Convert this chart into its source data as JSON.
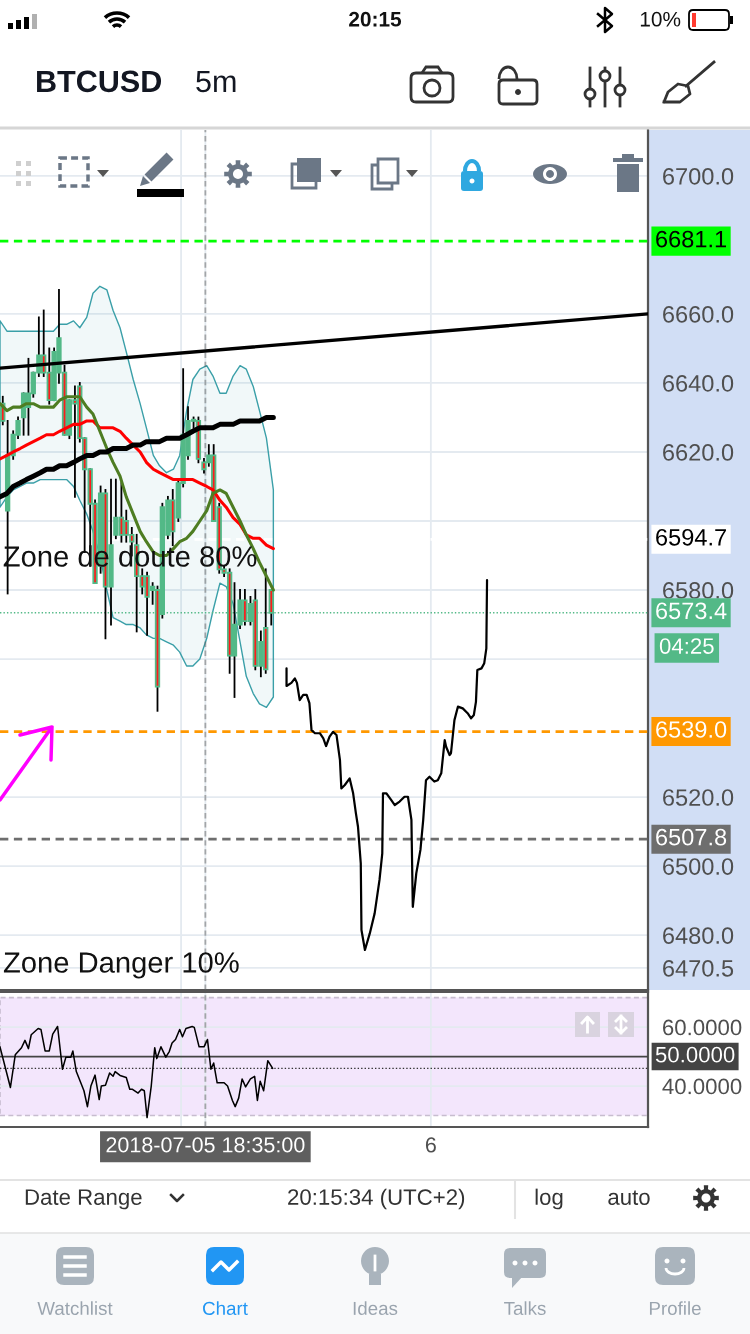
{
  "chart_data": [
    {
      "type": "candlestick",
      "title": "BTCUSD",
      "subtitle": "5m",
      "color": "#53b987",
      "x": [
        "2018-07-05T13:43",
        "2018-07-05T13:50",
        "2018-07-05T13:58",
        "2018-07-05T14:05",
        "2018-07-05T14:13",
        "2018-07-05T14:20",
        "2018-07-05T14:27",
        "2018-07-05T14:35",
        "2018-07-05T14:42",
        "2018-07-05T14:50",
        "2018-07-05T14:57",
        "2018-07-05T15:04",
        "2018-07-05T15:12",
        "2018-07-05T15:19",
        "2018-07-05T15:27",
        "2018-07-05T15:34",
        "2018-07-05T15:41",
        "2018-07-05T15:49",
        "2018-07-05T15:56",
        "2018-07-05T16:04",
        "2018-07-05T16:11",
        "2018-07-05T16:19",
        "2018-07-05T16:26",
        "2018-07-05T16:34",
        "2018-07-05T16:41",
        "2018-07-05T16:49",
        "2018-07-05T16:56",
        "2018-07-05T17:04",
        "2018-07-05T17:11",
        "2018-07-05T17:19",
        "2018-07-05T17:26",
        "2018-07-05T17:33",
        "2018-07-05T17:41",
        "2018-07-05T17:48",
        "2018-07-05T17:56",
        "2018-07-05T18:03",
        "2018-07-05T18:10",
        "2018-07-05T18:18",
        "2018-07-05T18:25",
        "2018-07-05T18:33",
        "2018-07-05T18:40",
        "2018-07-05T18:47",
        "2018-07-05T18:55",
        "2018-07-05T19:02",
        "2018-07-05T19:10",
        "2018-07-05T19:17",
        "2018-07-05T19:25",
        "2018-07-05T19:32",
        "2018-07-05T19:40",
        "2018-07-05T19:47",
        "2018-07-05T19:55",
        "2018-07-05T20:02",
        "2018-07-05T20:10"
      ],
      "ohlc": [
        [
          6634,
          6636,
          6628,
          6629
        ],
        [
          6603,
          6629,
          6579,
          6619
        ],
        [
          6619,
          6626,
          6618,
          6625
        ],
        [
          6625,
          6630,
          6624,
          6629
        ],
        [
          6630,
          6637,
          6625,
          6637
        ],
        [
          6633,
          6647,
          6625,
          6637
        ],
        [
          6637,
          6643,
          6636,
          6643
        ],
        [
          6643,
          6659,
          6642,
          6648
        ],
        [
          6648,
          6661,
          6642,
          6643
        ],
        [
          6643,
          6650,
          6634,
          6635
        ],
        [
          6635,
          6650,
          6635,
          6649
        ],
        [
          6643,
          6667,
          6640,
          6653
        ],
        [
          6643,
          6645,
          6625,
          6625
        ],
        [
          6625,
          6635,
          6624,
          6635
        ],
        [
          6635,
          6639,
          6607,
          6634
        ],
        [
          6639,
          6640,
          6623,
          6624
        ],
        [
          6624,
          6624,
          6591,
          6615
        ],
        [
          6615,
          6615,
          6587,
          6605
        ],
        [
          6605,
          6606,
          6582,
          6582
        ],
        [
          6587,
          6610,
          6585,
          6608
        ],
        [
          6608,
          6609,
          6566,
          6581
        ],
        [
          6581,
          6612,
          6570,
          6593
        ],
        [
          6596,
          6612,
          6595,
          6601
        ],
        [
          6601,
          6611,
          6594,
          6596
        ],
        [
          6600,
          6603,
          6594,
          6596
        ],
        [
          6596,
          6598,
          6590,
          6594
        ],
        [
          6593,
          6596,
          6568,
          6584
        ],
        [
          6584,
          6586,
          6579,
          6581
        ],
        [
          6584,
          6585,
          6567,
          6578
        ],
        [
          6580,
          6582,
          6576,
          6581
        ],
        [
          6580,
          6581,
          6545,
          6552
        ],
        [
          6573,
          6605,
          6572,
          6604
        ],
        [
          6596,
          6607,
          6595,
          6606
        ],
        [
          6606,
          6609,
          6593,
          6597
        ],
        [
          6601,
          6612,
          6600,
          6611
        ],
        [
          6611,
          6644,
          6610,
          6625
        ],
        [
          6619,
          6633,
          6618,
          6629
        ],
        [
          6629,
          6630,
          6627,
          6629
        ],
        [
          6629,
          6630,
          6617,
          6618
        ],
        [
          6617,
          6618,
          6614,
          6615
        ],
        [
          6617,
          6622,
          6616,
          6619
        ],
        [
          6619,
          6622,
          6600,
          6600
        ],
        [
          6604,
          6605,
          6585,
          6586
        ],
        [
          6586,
          6587,
          6584,
          6585
        ],
        [
          6585,
          6586,
          6556,
          6561
        ],
        [
          6561,
          6582,
          6549,
          6570
        ],
        [
          6570,
          6580,
          6569,
          6577
        ],
        [
          6577,
          6580,
          6570,
          6571
        ],
        [
          6571,
          6578,
          6570,
          6576
        ],
        [
          6577,
          6580,
          6557,
          6558
        ],
        [
          6558,
          6568,
          6555,
          6565
        ],
        [
          6569,
          6586,
          6556,
          6557
        ],
        [
          6580,
          6580,
          6570,
          6573.4
        ]
      ],
      "series": [
        {
          "type": "line",
          "color": "#3a9fa8",
          "x": [
            "2018-07-05T13:39",
            "2018-07-05T13:49",
            "2018-07-05T13:58",
            "2018-07-05T14:08",
            "2018-07-05T14:17",
            "2018-07-05T14:27",
            "2018-07-05T14:37",
            "2018-07-05T14:46",
            "2018-07-05T14:56",
            "2018-07-05T15:05",
            "2018-07-05T15:15",
            "2018-07-05T15:25",
            "2018-07-05T15:34",
            "2018-07-05T15:44",
            "2018-07-05T15:53",
            "2018-07-05T16:03",
            "2018-07-05T16:13",
            "2018-07-05T16:22",
            "2018-07-05T16:32",
            "2018-07-05T16:41",
            "2018-07-05T16:51",
            "2018-07-05T17:01",
            "2018-07-05T17:10",
            "2018-07-05T17:20",
            "2018-07-05T17:29",
            "2018-07-05T17:39",
            "2018-07-05T17:49",
            "2018-07-05T17:58",
            "2018-07-05T18:08",
            "2018-07-05T18:17",
            "2018-07-05T18:27",
            "2018-07-05T18:37",
            "2018-07-05T18:46",
            "2018-07-05T18:56",
            "2018-07-05T19:05",
            "2018-07-05T19:15",
            "2018-07-05T19:25",
            "2018-07-05T19:34",
            "2018-07-05T19:44",
            "2018-07-05T19:53",
            "2018-07-05T20:03",
            "2018-07-05T20:13"
          ],
          "values": [
            null,
            null,
            null,
            null,
            null,
            null,
            null,
            null,
            null,
            null,
            null,
            null,
            null,
            null,
            null,
            null,
            null,
            null,
            null,
            null,
            null,
            null,
            null,
            null,
            null,
            null,
            null,
            null,
            null,
            null,
            null,
            null,
            null,
            null,
            null,
            null,
            null,
            null,
            null,
            null,
            null,
            null
          ],
          "lower": [
            6604,
            6607,
            6609,
            6610,
            6611,
            6611,
            6612,
            6612,
            6612,
            6612,
            6612,
            6610,
            6606,
            6602,
            6597,
            6590,
            6580,
            6572,
            6571,
            6570,
            6570,
            6569,
            6567,
            6566,
            6566,
            6565,
            6564,
            6562,
            6558,
            6558,
            6560,
            6566,
            6574,
            6582,
            6581,
            6576,
            6565,
            6555,
            6550,
            6547,
            6546,
            6549
          ],
          "upper": [
            6658,
            6655,
            6655,
            6655,
            6655,
            6655,
            6655,
            6655,
            6655,
            6657,
            6657,
            6658,
            6656,
            6659,
            6666,
            6668,
            6667,
            6661,
            6656,
            6649,
            6641,
            6634,
            6627,
            6619,
            6616,
            6614,
            6615,
            6619,
            6632,
            6641,
            6644,
            6645,
            6642,
            6637,
            6637,
            6642,
            6645,
            6644,
            6639,
            6632,
            6624,
            6609
          ]
        },
        {
          "type": "line",
          "color": "#ff0000",
          "x": [
            "2018-07-05T13:39",
            "2018-07-05T13:49",
            "2018-07-05T13:58",
            "2018-07-05T14:08",
            "2018-07-05T14:17",
            "2018-07-05T14:27",
            "2018-07-05T14:37",
            "2018-07-05T14:46",
            "2018-07-05T14:56",
            "2018-07-05T15:05",
            "2018-07-05T15:15",
            "2018-07-05T15:25",
            "2018-07-05T15:34",
            "2018-07-05T15:44",
            "2018-07-05T15:53",
            "2018-07-05T16:03",
            "2018-07-05T16:13",
            "2018-07-05T16:22",
            "2018-07-05T16:32",
            "2018-07-05T16:41",
            "2018-07-05T16:51",
            "2018-07-05T17:01",
            "2018-07-05T17:10",
            "2018-07-05T17:20",
            "2018-07-05T17:29",
            "2018-07-05T17:39",
            "2018-07-05T17:49",
            "2018-07-05T17:58",
            "2018-07-05T18:08",
            "2018-07-05T18:17",
            "2018-07-05T18:27",
            "2018-07-05T18:37",
            "2018-07-05T18:46",
            "2018-07-05T18:56",
            "2018-07-05T19:05",
            "2018-07-05T19:15",
            "2018-07-05T19:25",
            "2018-07-05T19:34",
            "2018-07-05T19:44",
            "2018-07-05T19:53",
            "2018-07-05T20:03",
            "2018-07-05T20:13"
          ],
          "values": [
            6618,
            6619,
            6620,
            6621,
            6622,
            6623,
            6624,
            6625,
            6625,
            6626,
            6627,
            6628,
            6628,
            6629,
            6629,
            6627,
            6627,
            6627,
            6626,
            6624,
            6622,
            6620,
            6617,
            6615,
            6614,
            6613,
            6612,
            6612,
            6612,
            6612,
            6611,
            6610,
            6609,
            6606,
            6604,
            6601,
            6599,
            6596,
            6595,
            6595,
            6593,
            6592
          ]
        },
        {
          "type": "line",
          "color": "#4e7d22",
          "x": [
            "2018-07-05T13:39",
            "2018-07-05T13:49",
            "2018-07-05T13:58",
            "2018-07-05T14:08",
            "2018-07-05T14:17",
            "2018-07-05T14:27",
            "2018-07-05T14:37",
            "2018-07-05T14:46",
            "2018-07-05T14:56",
            "2018-07-05T15:05",
            "2018-07-05T15:15",
            "2018-07-05T15:25",
            "2018-07-05T15:34",
            "2018-07-05T15:44",
            "2018-07-05T15:53",
            "2018-07-05T16:03",
            "2018-07-05T16:13",
            "2018-07-05T16:22",
            "2018-07-05T16:32",
            "2018-07-05T16:41",
            "2018-07-05T16:51",
            "2018-07-05T17:01",
            "2018-07-05T17:10",
            "2018-07-05T17:20",
            "2018-07-05T17:29",
            "2018-07-05T17:39",
            "2018-07-05T17:49",
            "2018-07-05T17:58",
            "2018-07-05T18:08",
            "2018-07-05T18:17",
            "2018-07-05T18:27",
            "2018-07-05T18:37",
            "2018-07-05T18:46",
            "2018-07-05T18:56",
            "2018-07-05T19:05",
            "2018-07-05T19:15",
            "2018-07-05T19:25",
            "2018-07-05T19:34",
            "2018-07-05T19:44",
            "2018-07-05T19:53",
            "2018-07-05T20:03",
            "2018-07-05T20:13"
          ],
          "values": [
            6634,
            6632,
            6633,
            6633,
            6634,
            6634,
            6633,
            6633,
            6633,
            6635,
            6636,
            6636,
            6636,
            6633,
            6631,
            6626,
            6621,
            6617,
            6613,
            6607,
            6602,
            6597,
            6594,
            6591,
            6590,
            6590,
            6592,
            6594,
            6595,
            6597,
            6600,
            6603,
            6608,
            6609,
            6608,
            6604,
            6600,
            6596,
            6592,
            6588,
            6584,
            6580
          ]
        },
        {
          "type": "line",
          "color": "#000000",
          "x": [
            "2018-07-05T13:39",
            "2018-07-05T13:49",
            "2018-07-05T13:58",
            "2018-07-05T14:08",
            "2018-07-05T14:17",
            "2018-07-05T14:27",
            "2018-07-05T14:37",
            "2018-07-05T14:46",
            "2018-07-05T14:56",
            "2018-07-05T15:05",
            "2018-07-05T15:15",
            "2018-07-05T15:25",
            "2018-07-05T15:34",
            "2018-07-05T15:44",
            "2018-07-05T15:53",
            "2018-07-05T16:03",
            "2018-07-05T16:13",
            "2018-07-05T16:22",
            "2018-07-05T16:32",
            "2018-07-05T16:41",
            "2018-07-05T16:51",
            "2018-07-05T17:01",
            "2018-07-05T17:10",
            "2018-07-05T17:20",
            "2018-07-05T17:29",
            "2018-07-05T17:39",
            "2018-07-05T17:49",
            "2018-07-05T17:58",
            "2018-07-05T18:08",
            "2018-07-05T18:17",
            "2018-07-05T18:27",
            "2018-07-05T18:37",
            "2018-07-05T18:46",
            "2018-07-05T18:56",
            "2018-07-05T19:05",
            "2018-07-05T19:15",
            "2018-07-05T19:25",
            "2018-07-05T19:34",
            "2018-07-05T19:44",
            "2018-07-05T19:53",
            "2018-07-05T20:03",
            "2018-07-05T20:13"
          ],
          "values": [
            6607,
            6608,
            6610,
            6611,
            6612,
            6613,
            6614,
            6615,
            6615,
            6616,
            6616,
            6617,
            6618,
            6619,
            6619,
            6620,
            6620,
            6621,
            6621,
            6621,
            6622,
            6622,
            6623,
            6623,
            6623,
            6624,
            6624,
            6624,
            6625,
            6626,
            6627,
            6627,
            6627,
            6628,
            6628,
            6628,
            6629,
            6629,
            6629,
            6629,
            6630,
            6630
          ]
        },
        {
          "type": "line",
          "color": "#000000",
          "x": [
            "2018-07-05T13:39",
            "2018-07-06T05:13"
          ],
          "values": [
            6644.3,
            6660.0
          ]
        },
        {
          "type": "line",
          "color": "#000000",
          "x": [
            "2018-07-05T20:32",
            "2018-07-05T20:32",
            "2018-07-05T20:39",
            "2018-07-05T20:44",
            "2018-07-05T20:47",
            "2018-07-05T20:51",
            "2018-07-05T20:56",
            "2018-07-05T21:01",
            "2018-07-05T21:05",
            "2018-07-05T21:08",
            "2018-07-05T21:13",
            "2018-07-05T21:20",
            "2018-07-05T21:25",
            "2018-07-05T21:29",
            "2018-07-05T21:34",
            "2018-07-05T21:39",
            "2018-07-05T21:44",
            "2018-07-05T21:49",
            "2018-07-05T21:51",
            "2018-07-05T21:56",
            "2018-07-05T22:03",
            "2018-07-05T22:08",
            "2018-07-05T22:12",
            "2018-07-05T22:15",
            "2018-07-05T22:19",
            "2018-07-05T22:20",
            "2018-07-05T22:25",
            "2018-07-05T22:32",
            "2018-07-05T22:39",
            "2018-07-05T22:46",
            "2018-07-05T22:50",
            "2018-07-05T22:51",
            "2018-07-05T22:56",
            "2018-07-05T23:03",
            "2018-07-05T23:08",
            "2018-07-05T23:15",
            "2018-07-05T23:22",
            "2018-07-05T23:27",
            "2018-07-05T23:32",
            "2018-07-05T23:34",
            "2018-07-05T23:39",
            "2018-07-05T23:45",
            "2018-07-05T23:49",
            "2018-07-05T23:53",
            "2018-07-05T23:58",
            "2018-07-06T00:05",
            "2018-07-06T00:10",
            "2018-07-06T00:15",
            "2018-07-06T00:19",
            "2018-07-06T00:20",
            "2018-07-06T00:22",
            "2018-07-06T00:27",
            "2018-07-06T00:29",
            "2018-07-06T00:34",
            "2018-07-06T00:39",
            "2018-07-06T00:46",
            "2018-07-06T00:53",
            "2018-07-06T00:58",
            "2018-07-06T01:02",
            "2018-07-06T01:05",
            "2018-07-06T01:07",
            "2018-07-06T01:13",
            "2018-07-06T01:17",
            "2018-07-06T01:20",
            "2018-07-06T01:21"
          ],
          "values": [
            6557.3,
            6552.2,
            6553.1,
            6554.4,
            6553.1,
            6548.1,
            6549.6,
            6549.6,
            6547.2,
            6539.4,
            6538.5,
            6538.5,
            6537.0,
            6534.8,
            6537.5,
            6538.9,
            6538.0,
            6530.7,
            6522.5,
            6523.5,
            6525.4,
            6521.1,
            6515.3,
            6511.4,
            6500.8,
            6481.5,
            6475.7,
            6480.5,
            6486.3,
            6496.0,
            6503.7,
            6521.1,
            6521.1,
            6519.1,
            6517.7,
            6518.7,
            6520.1,
            6520.1,
            6513.4,
            6488.2,
            6497.9,
            6504.7,
            6513.4,
            6524.9,
            6525.9,
            6524.5,
            6524.9,
            6526.9,
            6534.6,
            6536.5,
            6534.6,
            6532.2,
            6532.7,
            6542.3,
            6546.2,
            6545.7,
            6544.3,
            6542.8,
            6543.8,
            6547.6,
            6556.8,
            6557.3,
            6558.8,
            6563.1,
            6582.9
          ]
        }
      ],
      "xlim": [
        "2018-07-05T13:39",
        "2018-07-06T05:13"
      ],
      "ylim": [
        6464.1,
        6713.3
      ],
      "xticks": [
        {
          "value": "2018-07-05T18:00",
          "label": null
        },
        {
          "value": "2018-07-05T18:35",
          "label": null
        },
        {
          "value": "2018-07-06",
          "label": null
        }
      ],
      "yticks": [
        {
          "value": 6470.5,
          "label": "6470.5"
        },
        {
          "value": 6480,
          "label": "6480.0"
        },
        {
          "value": 6500,
          "label": "6500.0"
        },
        {
          "value": 6520,
          "label": "6520.0"
        },
        {
          "value": 6560,
          "label": null
        },
        {
          "value": 6580,
          "label": "6580.0"
        },
        {
          "value": 6600,
          "label": null
        },
        {
          "value": 6620,
          "label": "6620.0"
        },
        {
          "value": 6640,
          "label": "6640.0"
        },
        {
          "value": 6660,
          "label": "6660.0"
        },
        {
          "value": 6700,
          "label": "6700.0"
        }
      ],
      "tick_labels": "y",
      "grid": true,
      "ref_lines": [
        {
          "axis": "y",
          "value": 6681.1,
          "label": "6681.1",
          "color": "#00ff00",
          "line_style": "dashed"
        },
        {
          "axis": "y",
          "value": 6594.7,
          "label": "6594.7",
          "color": "#ffffff",
          "line_style": "dashed"
        },
        {
          "axis": "y",
          "value": 6573.4,
          "label": "6573.4",
          "color": "#53b987",
          "line_style": "dotted"
        },
        {
          "axis": "y",
          "value": 6539.0,
          "label": "6539.0",
          "color": "#ff9800",
          "line_style": "dashed"
        },
        {
          "axis": "y",
          "value": 6507.8,
          "label": "6507.8",
          "color": "#6e6e6e",
          "line_style": "dashed"
        },
        {
          "axis": "x",
          "value": "2018-07-05T18:35",
          "color": "#5f5f5f",
          "line_style": "dashed"
        }
      ],
      "annotations": [
        {
          "text": "Zone de doute 80%",
          "x": "2018-07-05T13:43",
          "y": 6589
        },
        "Zone Danger 10%",
        "04:25",
        "20:15",
        "10%",
        "Date Range",
        "20:15:34 (UTC+2)",
        "log",
        "auto",
        "Watchlist",
        "Chart",
        "Ideas",
        "Talks",
        "Profile"
      ]
    },
    {
      "type": "line",
      "series": [
        {
          "color": "#000000",
          "x": [
            "2018-07-05T13:39",
            "2018-07-05T13:54",
            "2018-07-05T14:01",
            "2018-07-05T14:10",
            "2018-07-05T14:15",
            "2018-07-05T14:20",
            "2018-07-05T14:24",
            "2018-07-05T14:34",
            "2018-07-05T14:38",
            "2018-07-05T14:44",
            "2018-07-05T14:50",
            "2018-07-05T14:55",
            "2018-07-05T15:02",
            "2018-07-05T15:09",
            "2018-07-05T15:14",
            "2018-07-05T15:21",
            "2018-07-05T15:24",
            "2018-07-05T15:29",
            "2018-07-05T15:40",
            "2018-07-05T15:45",
            "2018-07-05T15:50",
            "2018-07-05T15:56",
            "2018-07-05T16:02",
            "2018-07-05T16:05",
            "2018-07-05T16:11",
            "2018-07-05T16:17",
            "2018-07-05T16:22",
            "2018-07-05T16:25",
            "2018-07-05T16:32",
            "2018-07-05T16:41",
            "2018-07-05T16:46",
            "2018-07-05T16:50",
            "2018-07-05T16:58",
            "2018-07-05T17:03",
            "2018-07-05T17:07",
            "2018-07-05T17:11",
            "2018-07-05T17:17",
            "2018-07-05T17:22",
            "2018-07-05T17:25",
            "2018-07-05T17:31",
            "2018-07-05T17:38",
            "2018-07-05T17:43",
            "2018-07-05T17:47",
            "2018-07-05T17:52",
            "2018-07-05T17:58",
            "2018-07-05T18:02",
            "2018-07-05T18:07",
            "2018-07-05T18:16",
            "2018-07-05T18:19",
            "2018-07-05T18:26",
            "2018-07-05T18:33",
            "2018-07-05T18:38",
            "2018-07-05T18:43",
            "2018-07-05T18:47",
            "2018-07-05T18:52",
            "2018-07-05T19:02",
            "2018-07-05T19:07",
            "2018-07-05T19:14",
            "2018-07-05T19:18",
            "2018-07-05T19:23",
            "2018-07-05T19:28",
            "2018-07-05T19:33",
            "2018-07-05T19:40",
            "2018-07-05T19:46",
            "2018-07-05T19:50",
            "2018-07-05T19:54",
            "2018-07-05T19:59",
            "2018-07-05T20:05",
            "2018-07-05T20:12"
          ],
          "values": [
            53.3,
            39.5,
            50.6,
            53.0,
            55.5,
            52.7,
            57.4,
            59.5,
            59.2,
            51.9,
            51.9,
            57.6,
            60.2,
            45.7,
            49.8,
            49.8,
            51.9,
            44.9,
            38.4,
            33.0,
            40.0,
            43.7,
            35.4,
            40.0,
            40.3,
            44.4,
            43.3,
            44.9,
            43.6,
            42.9,
            38.9,
            38.9,
            37.6,
            38.9,
            38.4,
            29.3,
            40.0,
            53.0,
            49.3,
            53.3,
            49.8,
            51.7,
            54.6,
            55.8,
            59.2,
            56.7,
            59.5,
            60.2,
            59.9,
            53.3,
            53.3,
            55.8,
            45.7,
            47.8,
            41.1,
            41.1,
            40.0,
            35.1,
            33.0,
            35.9,
            42.4,
            39.7,
            42.4,
            43.3,
            35.1,
            41.6,
            38.4,
            48.6,
            46.0
          ]
        }
      ],
      "xlim": [
        "2018-07-05T13:39",
        "2018-07-06T05:13"
      ],
      "ylim": [
        26.1,
        71.9
      ],
      "xticks": [
        {
          "value": "2018-07-05T18:00",
          "label": null
        },
        {
          "value": "2018-07-05T18:35",
          "label": "2018-07-05 18:35:00"
        },
        {
          "value": "2018-07-06",
          "label": "6"
        }
      ],
      "yticks": [
        {
          "value": 40,
          "label": "40.0000"
        },
        {
          "value": 60,
          "label": "60.0000"
        }
      ],
      "grid": true,
      "bands": [
        {
          "axis": "y",
          "from": 30,
          "to": 70,
          "color": "#f3e6fc"
        }
      ],
      "ref_lines": [
        {
          "axis": "y",
          "value": 50,
          "label": "50.0000",
          "color": "#444444",
          "line_style": "solid"
        },
        {
          "axis": "y",
          "value": 46,
          "color": "#333333",
          "line_style": "dotted"
        },
        {
          "axis": "x",
          "value": "2018-07-05T18:35",
          "color": "#5f5f5f",
          "line_style": "dashed"
        }
      ]
    }
  ]
}
